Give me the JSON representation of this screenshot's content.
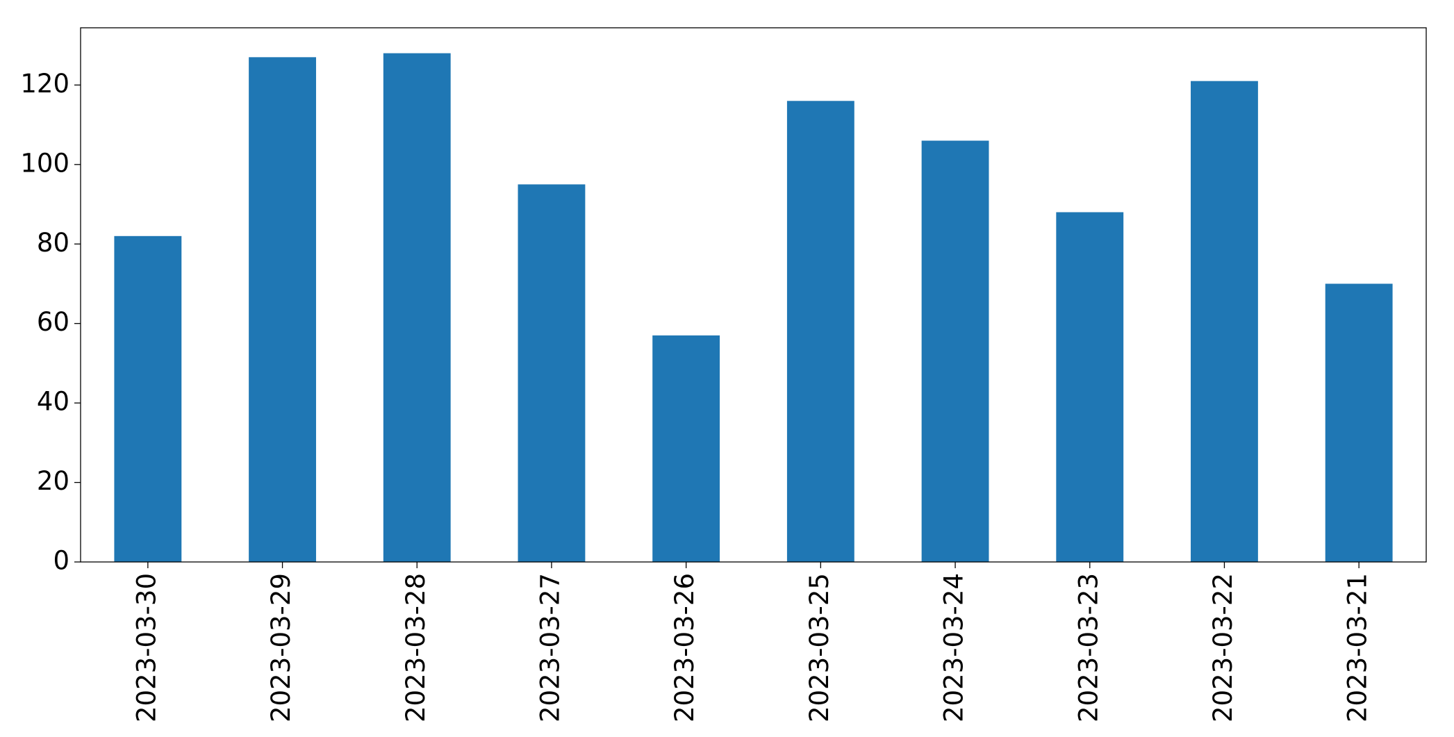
{
  "chart_data": {
    "type": "bar",
    "categories": [
      "2023-03-30",
      "2023-03-29",
      "2023-03-28",
      "2023-03-27",
      "2023-03-26",
      "2023-03-25",
      "2023-03-24",
      "2023-03-23",
      "2023-03-22",
      "2023-03-21"
    ],
    "values": [
      82,
      127,
      128,
      95,
      57,
      116,
      106,
      88,
      121,
      70
    ],
    "color": "#1f77b4",
    "ylim": [
      0,
      134.4
    ],
    "yticks": [
      0,
      20,
      40,
      60,
      80,
      100,
      120
    ],
    "grid": false
  }
}
